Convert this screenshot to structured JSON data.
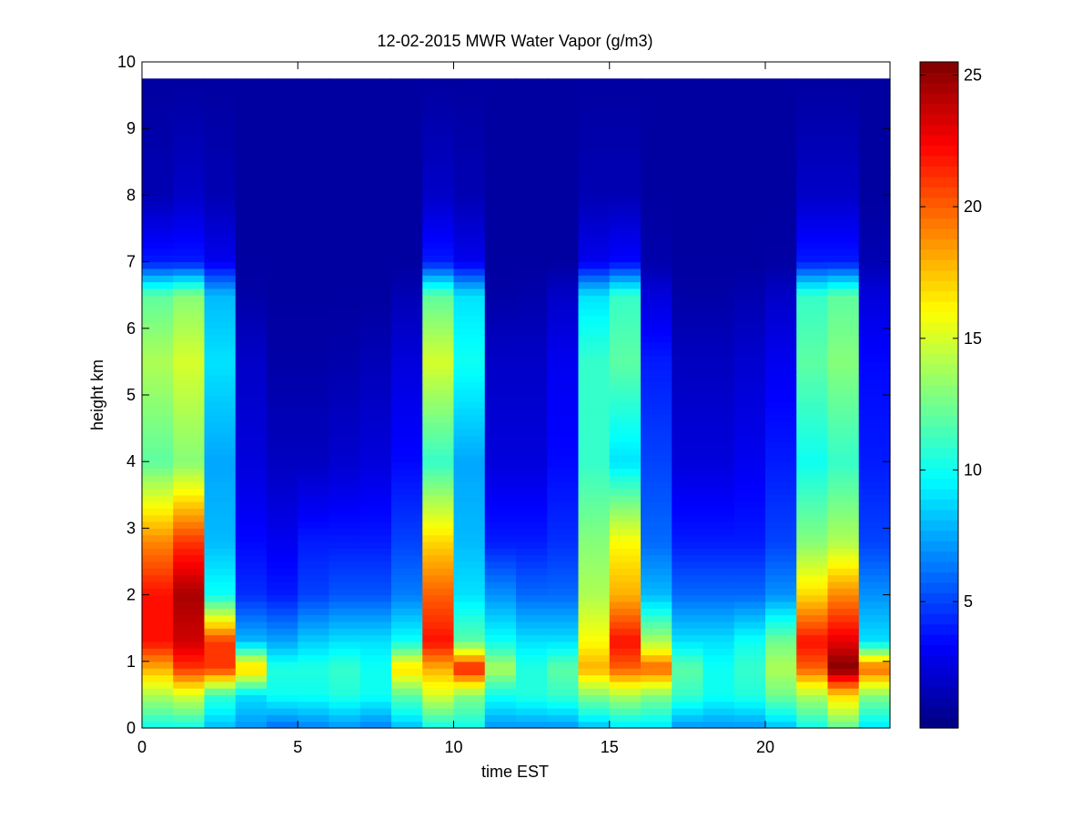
{
  "chart_data": {
    "type": "heatmap",
    "title": "12-02-2015 MWR Water Vapor (g/m3)",
    "xlabel": "time EST",
    "ylabel": "height km",
    "xlim": [
      0,
      24
    ],
    "ylim": [
      0,
      10
    ],
    "x_ticks": [
      0,
      5,
      10,
      15,
      20
    ],
    "y_ticks": [
      0,
      1,
      2,
      3,
      4,
      5,
      6,
      7,
      8,
      9,
      10
    ],
    "colorbar": {
      "colormap": "jet",
      "range": [
        0.2,
        25.5
      ],
      "ticks": [
        5,
        10,
        15,
        20,
        25
      ]
    },
    "x": [
      0.5,
      1.5,
      2.5,
      3.5,
      4.5,
      5.5,
      6.5,
      7.5,
      8.5,
      9.5,
      10.5,
      11.5,
      12.5,
      13.5,
      14.5,
      15.5,
      16.5,
      17.5,
      18.5,
      19.5,
      20.5,
      21.5,
      22.5,
      23.5
    ],
    "x_bin_width": 1,
    "y_top": 9.75,
    "y_bin_height": 0.1,
    "profile_levels_km": [
      0,
      0.5,
      0.9,
      1.3,
      2.0,
      2.8,
      4.0,
      5.5,
      6.5,
      7.0,
      8.0,
      9.75
    ],
    "column_profiles_gm3": [
      [
        10,
        14,
        18,
        22,
        22,
        19,
        12,
        14,
        12,
        4,
        1.5,
        1
      ],
      [
        10,
        15,
        21,
        23.5,
        24.5,
        21,
        13,
        15,
        13,
        4,
        2,
        1
      ],
      [
        8,
        11,
        21,
        21,
        10,
        8,
        7.5,
        9,
        8,
        3,
        1.5,
        1
      ],
      [
        7,
        9,
        17.5,
        8,
        4.5,
        3.5,
        2.5,
        2,
        1.2,
        1,
        1,
        1
      ],
      [
        6,
        10,
        10.5,
        7.5,
        4,
        3,
        1.8,
        1.2,
        1,
        1,
        1,
        1
      ],
      [
        6.5,
        10,
        10.5,
        8.5,
        5,
        4,
        1.8,
        1.2,
        1,
        1,
        1,
        1
      ],
      [
        7,
        10.5,
        11,
        9,
        5.5,
        4,
        2.2,
        1.3,
        1,
        1,
        1,
        1
      ],
      [
        6.5,
        10,
        10,
        9,
        5.5,
        4,
        2.5,
        1.6,
        1,
        1,
        1,
        1
      ],
      [
        8,
        12,
        17,
        10,
        6.5,
        5,
        3.5,
        2.5,
        1.5,
        1,
        1,
        1
      ],
      [
        10,
        15,
        18,
        22,
        20,
        17,
        11,
        15,
        12,
        4,
        2,
        1
      ],
      [
        10,
        13,
        22,
        12,
        9,
        8,
        7.5,
        10,
        9,
        3,
        1.5,
        1
      ],
      [
        7,
        10,
        14,
        10,
        7,
        4,
        2.5,
        2,
        1.2,
        1,
        1,
        1
      ],
      [
        7,
        10.5,
        10.5,
        9,
        6,
        4,
        2.5,
        2,
        1.3,
        1,
        1,
        1
      ],
      [
        7,
        11,
        12,
        9,
        6,
        4.5,
        3.5,
        3,
        2,
        1,
        1,
        1
      ],
      [
        8,
        13,
        18,
        16,
        14,
        13,
        11,
        11,
        9,
        3,
        1.5,
        1
      ],
      [
        9,
        14,
        20,
        22,
        18,
        16,
        9,
        12,
        11,
        3.5,
        1.5,
        1
      ],
      [
        9,
        13,
        20,
        14,
        8,
        6,
        5,
        4,
        2.5,
        1.3,
        1,
        1
      ],
      [
        7,
        11,
        12,
        9,
        6,
        4,
        2.5,
        1.8,
        1.2,
        1,
        1,
        1
      ],
      [
        7,
        10,
        10,
        9,
        6,
        4,
        2.5,
        1.8,
        1.2,
        1,
        1,
        1
      ],
      [
        7,
        10.5,
        11,
        10,
        6,
        4,
        3,
        2.2,
        1.4,
        1,
        1,
        1
      ],
      [
        8,
        12.5,
        14,
        12.5,
        7,
        5,
        4,
        3,
        2,
        1.1,
        1,
        1
      ],
      [
        10,
        14,
        20,
        22,
        17,
        13,
        10,
        12,
        11,
        4,
        2,
        1
      ],
      [
        12,
        17,
        25.5,
        23,
        19,
        14,
        11,
        13,
        12,
        4,
        2,
        1
      ],
      [
        9,
        13,
        20,
        9,
        7,
        5,
        4,
        3.5,
        2.5,
        1.5,
        1,
        1
      ]
    ]
  }
}
